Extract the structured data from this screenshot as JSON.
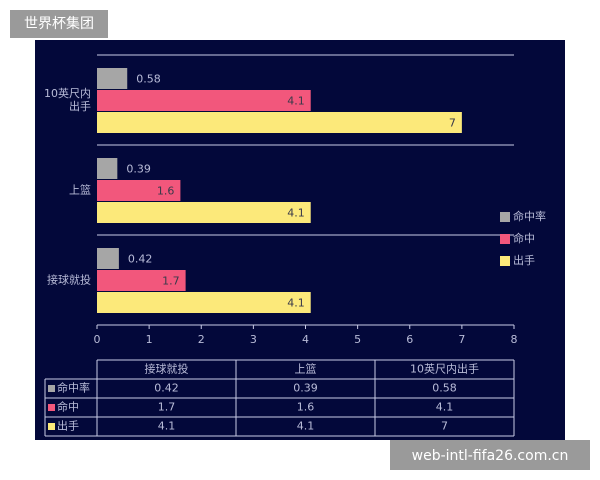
{
  "watermark_top": "世界杯集团",
  "watermark_bottom": "web-intl-fifa26.com.cn",
  "chart_data": {
    "type": "bar",
    "orientation": "horizontal",
    "categories": [
      "接球就投",
      "上篮",
      "10英尺内出手"
    ],
    "series": [
      {
        "name": "命中率",
        "color": "#a6a6a6",
        "values": [
          0.42,
          0.39,
          0.58
        ],
        "label_position": "outside"
      },
      {
        "name": "命中",
        "color": "#f2577c",
        "values": [
          1.7,
          1.6,
          4.1
        ],
        "label_position": "inside"
      },
      {
        "name": "出手",
        "color": "#fce97a",
        "values": [
          4.1,
          4.1,
          7
        ],
        "label_position": "inside"
      }
    ],
    "xlim": [
      0,
      8
    ],
    "xticks": [
      0,
      1,
      2,
      3,
      4,
      5,
      6,
      7,
      8
    ],
    "legend": "right",
    "data_table": true
  }
}
